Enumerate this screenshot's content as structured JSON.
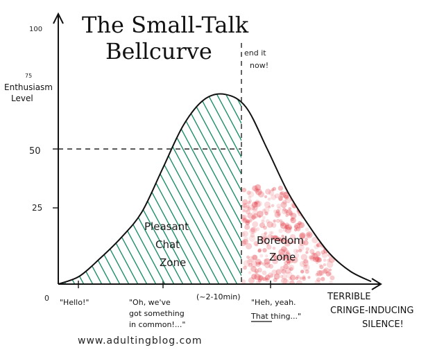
{
  "chart_data": {
    "type": "area",
    "title_line1": "The Small-Talk",
    "title_line2": "Bellcurve",
    "ylabel_line1": "Enthusiasm",
    "ylabel_line2": "Level",
    "y_ticks": [
      "100",
      "75",
      "50",
      "25",
      "0"
    ],
    "ylim": [
      0,
      100
    ],
    "curve_y": [
      0,
      3,
      10,
      18,
      28,
      45,
      62,
      72,
      74,
      69,
      53,
      36,
      23,
      12,
      5,
      1
    ],
    "threshold_label_line1": "end it",
    "threshold_label_line2": "now!",
    "zones": [
      {
        "line1": "Pleasant",
        "line2": "Chat",
        "line3": "Zone",
        "color": "#1e8f68"
      },
      {
        "line1": "Boredom",
        "line2": "Zone",
        "color": "#e23a45"
      }
    ],
    "x_labels": [
      {
        "line1": "\"Hello!\""
      },
      {
        "line1": "\"Oh, we've",
        "line2": "got something",
        "line3": "in common!...\""
      },
      {
        "line1": "(~2-10min)"
      },
      {
        "line1": "\"Heh, yeah.",
        "line2": "That thing...\""
      },
      {
        "line1": "TERRIBLE",
        "line2": "CRINGE-INDUCING",
        "line3": "SILENCE!"
      }
    ],
    "grid": false,
    "legend": "none"
  },
  "footer": {
    "url": "www.adultingblog.com"
  }
}
